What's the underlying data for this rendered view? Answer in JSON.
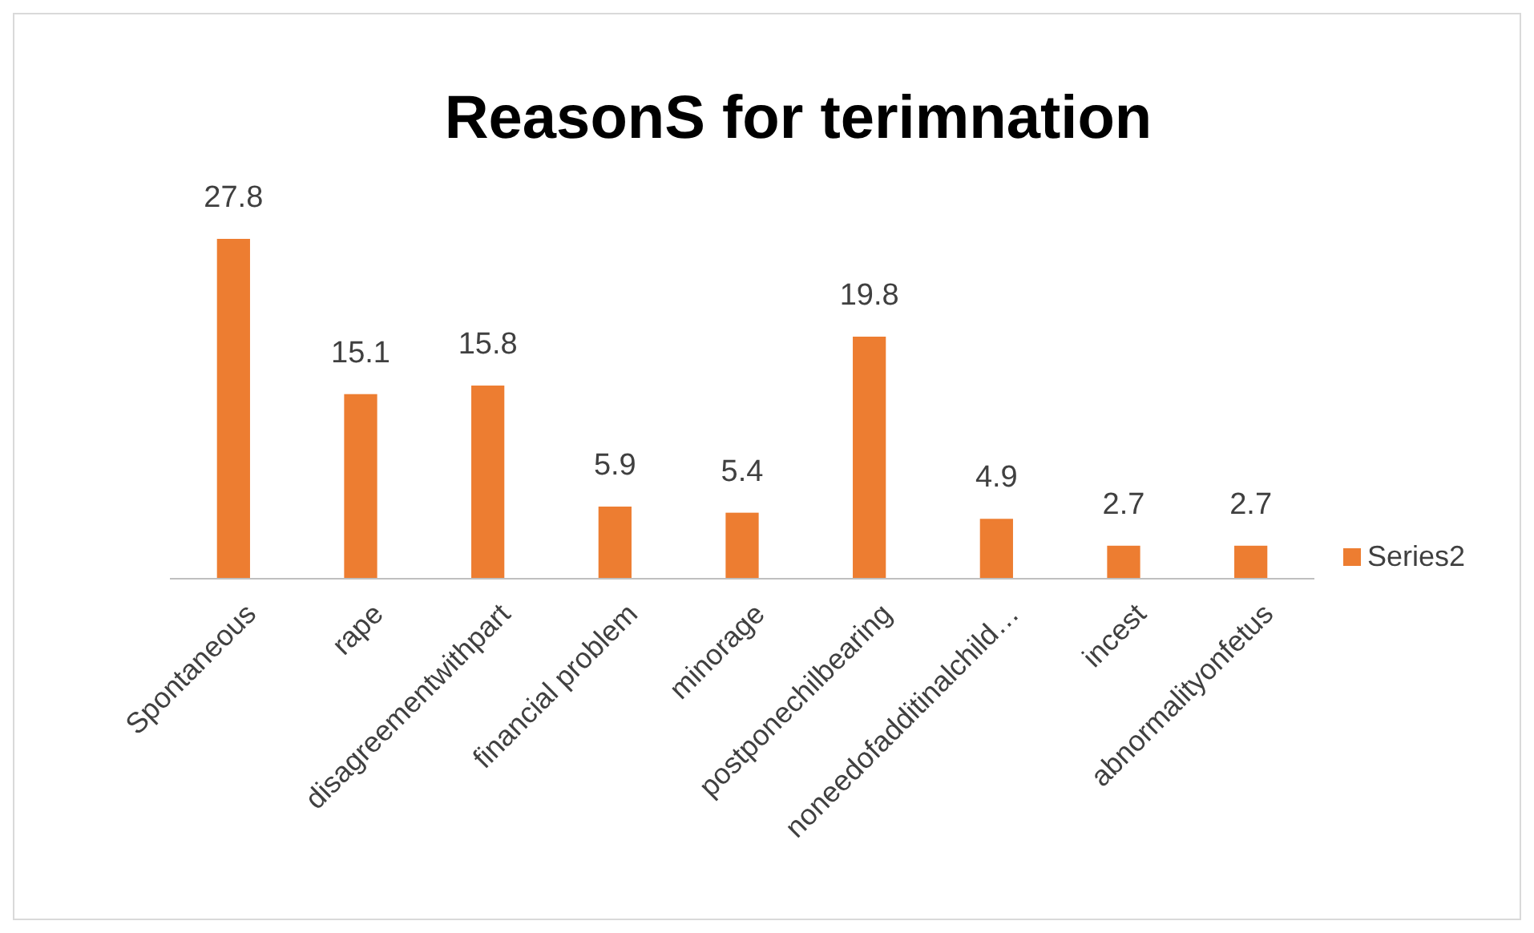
{
  "chart_data": {
    "type": "bar",
    "title": "ReasonS for terimnation",
    "categories": [
      "Spontaneous",
      "rape",
      "disagreementwithpart",
      "financial problem",
      "minorage",
      "postponechilbearing",
      "noneedofadditinalchild…",
      "incest",
      "abnormalityonfetus"
    ],
    "series": [
      {
        "name": "Series2",
        "color": "#ed7d31",
        "values": [
          27.8,
          15.1,
          15.8,
          5.9,
          5.4,
          19.8,
          4.9,
          2.7,
          2.7
        ]
      }
    ],
    "data_labels": true,
    "legend": "right"
  }
}
